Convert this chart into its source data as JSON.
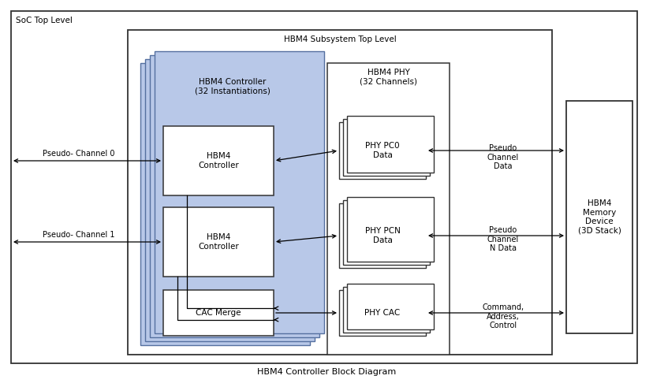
{
  "title": "HBM4 Controller Block Diagram",
  "soc_label": "SoC Top Level",
  "hbm4_subsystem_label": "HBM4 Subsystem Top Level",
  "controller_group_label": "HBM4 Controller\n(32 Instantiations)",
  "phy_group_label": "HBM4 PHY\n(32 Channels)",
  "ctrl_box1_label": "HBM4\nController",
  "ctrl_box2_label": "HBM4\nController",
  "cac_merge_label": "CAC Merge",
  "phy_pc0_label": "PHY PC0\nData",
  "phy_pcn_label": "PHY PCN\nData",
  "phy_cac_label": "PHY CAC",
  "pseudo_ch0_label": "Pseudo- Channel 0",
  "pseudo_ch1_label": "Pseudo- Channel 1",
  "pseudo_ch_data_label": "Pseudo\nChannel\nData",
  "pseudo_ch_n_label": "Pseudo\nChannel\nN Data",
  "cmd_addr_ctrl_label": "Command,\nAddress,\nControl",
  "hbm4_mem_label": "HBM4\nMemory\nDevice\n(3D Stack)",
  "bg_color": "#ffffff",
  "ctrl_group_fill": "#b8c8e8",
  "ctrl_group_edge": "#5570a0",
  "ctrl_box_fill": "#ffffff",
  "ctrl_box_edge": "#333333",
  "phy_box_fill": "#ffffff",
  "phy_box_edge": "#333333",
  "soc_box_edge": "#333333",
  "sub_box_edge": "#333333",
  "mem_box_fill": "#ffffff",
  "mem_box_edge": "#333333",
  "arrow_color": "#000000",
  "watermark_color": "#d0d0d0",
  "title_fontsize": 8,
  "label_fontsize": 7.5,
  "small_fontsize": 7
}
